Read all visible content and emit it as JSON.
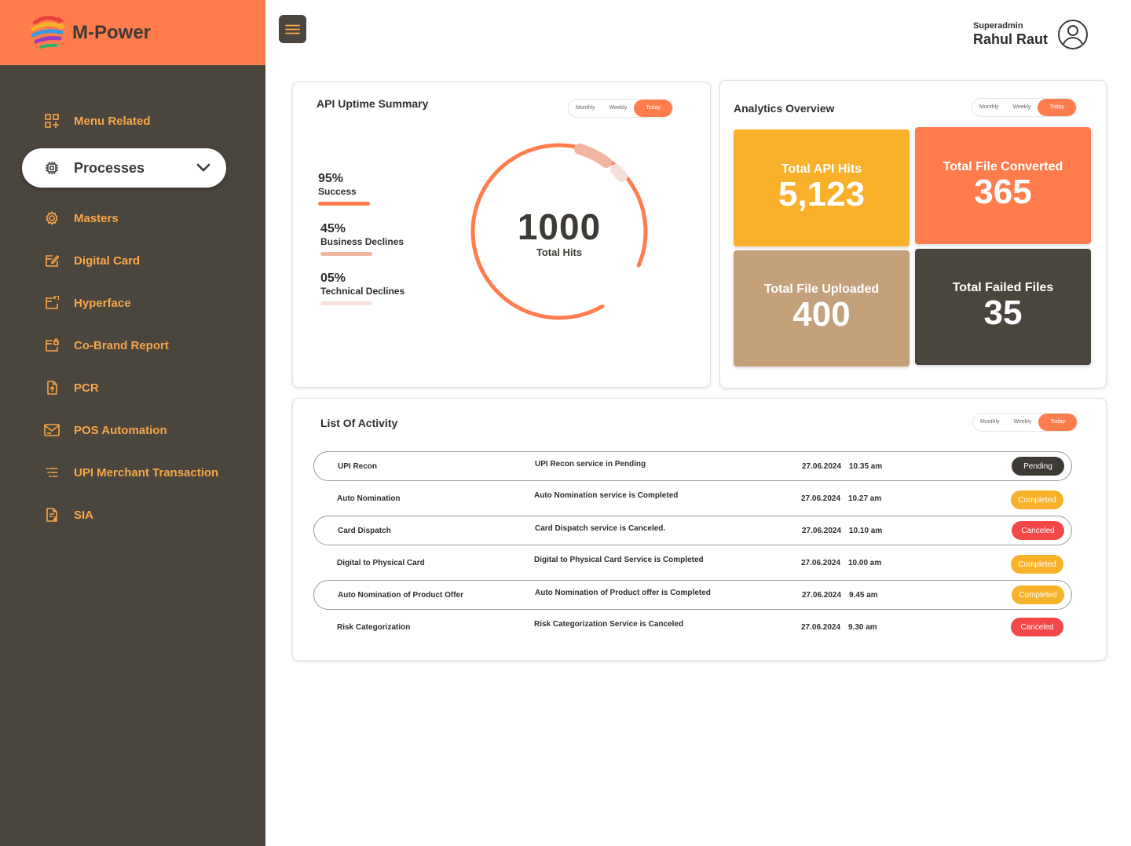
{
  "brand": {
    "name": "M-Power"
  },
  "sidebar": {
    "items": [
      {
        "label": "Menu Related",
        "icon": "grid-plus-icon"
      },
      {
        "label": "Processes",
        "icon": "chip-icon",
        "active": true
      },
      {
        "label": "Masters",
        "icon": "gear-icon"
      },
      {
        "label": "Digital Card",
        "icon": "card-edit-icon"
      },
      {
        "label": "Hyperface",
        "icon": "card-refresh-icon"
      },
      {
        "label": "Co-Brand Report",
        "icon": "card-lock-icon"
      },
      {
        "label": "PCR",
        "icon": "document-upload-icon"
      },
      {
        "label": "POS Automation",
        "icon": "mail-icon"
      },
      {
        "label": "UPI Merchant Transaction",
        "icon": "list-icon"
      },
      {
        "label": "SIA",
        "icon": "document-download-icon"
      }
    ]
  },
  "user": {
    "role": "Superadmin",
    "name": "Rahul Raut"
  },
  "periods": [
    "Monthly",
    "Weekly",
    "Today"
  ],
  "uptime": {
    "title": "API Uptime Summary",
    "total": "1000",
    "total_label": "Total Hits",
    "stats": [
      {
        "pct": "95%",
        "label": "Success",
        "color": "#ff7d4d"
      },
      {
        "pct": "45%",
        "label": "Business Declines",
        "color": "#f2b5a0"
      },
      {
        "pct": "05%",
        "label": "Technical Declines",
        "color": "#f5e1da"
      }
    ]
  },
  "analytics": {
    "title": "Analytics Overview",
    "tiles": [
      {
        "label": "Total API Hits",
        "value": "5,123",
        "color": "#f9b02b"
      },
      {
        "label": "Total File Converted",
        "value": "365",
        "color": "#ff7d4d"
      },
      {
        "label": "Total File Uploaded",
        "value": "400",
        "color": "#c4a07b"
      },
      {
        "label": "Total Failed Files",
        "value": "35",
        "color": "#4a453d"
      }
    ]
  },
  "activity": {
    "title": "List Of Activity",
    "rows": [
      {
        "name": "UPI Recon",
        "desc": "UPI Recon service in Pending",
        "date": "27.06.2024",
        "time": "10.35 am",
        "status": "Pending"
      },
      {
        "name": "Auto Nomination",
        "desc": "Auto Nomination service is Completed",
        "date": "27.06.2024",
        "time": "10.27 am",
        "status": "Completed"
      },
      {
        "name": "Card Dispatch",
        "desc": "Card Dispatch service is Canceled.",
        "date": "27.06.2024",
        "time": "10.10 am",
        "status": "Canceled"
      },
      {
        "name": "Digital to Physical Card",
        "desc": "Digital to Physical Card Service is Completed",
        "date": "27.06.2024",
        "time": "10.00 am",
        "status": "Completed"
      },
      {
        "name": "Auto Nomination of Product Offer",
        "desc": "Auto Nomination of Product offer is Completed",
        "date": "27.06.2024",
        "time": "9.45 am",
        "status": "Completed"
      },
      {
        "name": "Risk Categorization",
        "desc": "Risk Categorization Service is Canceled",
        "date": "27.06.2024",
        "time": "9.30 am",
        "status": "Canceled"
      }
    ]
  }
}
